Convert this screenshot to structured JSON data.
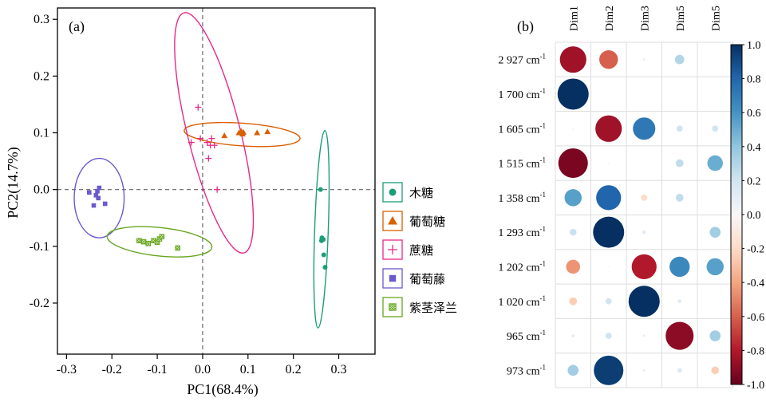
{
  "chart_data": [
    {
      "type": "scatter",
      "panel_label": "(a)",
      "xlabel": "PC1(68.4%)",
      "ylabel": "PC2(14.7%)",
      "xlim": [
        -0.32,
        0.38
      ],
      "ylim": [
        -0.29,
        0.32
      ],
      "xticks": [
        -0.3,
        -0.2,
        -0.1,
        0.0,
        0.1,
        0.2,
        0.3
      ],
      "yticks": [
        -0.2,
        -0.1,
        0.0,
        0.1,
        0.2,
        0.3
      ],
      "xtick_labels": [
        "-0.3",
        "-0.2",
        "-0.1",
        "0.0",
        "0.1",
        "0.2",
        "0.3"
      ],
      "ytick_labels": [
        "-0.2",
        "-0.1",
        "0.0",
        "0.1",
        "0.2",
        "0.3"
      ],
      "reference_lines": {
        "x": 0,
        "y": 0
      },
      "legend_position": "right",
      "series": [
        {
          "name": "木糖",
          "color": "#1b9e77",
          "marker": "circle",
          "points": [
            [
              0.26,
              0.0
            ],
            [
              0.263,
              -0.085
            ],
            [
              0.266,
              -0.088
            ],
            [
              0.262,
              -0.09
            ],
            [
              0.267,
              -0.115
            ],
            [
              0.27,
              -0.137
            ]
          ],
          "ellipse": {
            "cx": 0.262,
            "cy": -0.07,
            "rx": 0.015,
            "ry": 0.174,
            "angle": 2
          }
        },
        {
          "name": "葡萄糖",
          "color": "#d95f02",
          "marker": "triangle",
          "points": [
            [
              0.048,
              0.095
            ],
            [
              0.08,
              0.1
            ],
            [
              0.085,
              0.103
            ],
            [
              0.088,
              0.098
            ],
            [
              0.09,
              0.101
            ],
            [
              0.12,
              0.1
            ],
            [
              0.143,
              0.102
            ]
          ],
          "ellipse": {
            "cx": 0.087,
            "cy": 0.097,
            "rx": 0.128,
            "ry": 0.02,
            "angle": 4
          }
        },
        {
          "name": "蔗糖",
          "color": "#e7298a",
          "marker": "plus",
          "points": [
            [
              -0.01,
              0.145
            ],
            [
              -0.005,
              0.09
            ],
            [
              -0.025,
              0.083
            ],
            [
              0.02,
              0.09
            ],
            [
              0.01,
              0.083
            ],
            [
              0.017,
              0.078
            ],
            [
              0.026,
              0.078
            ],
            [
              0.013,
              0.055
            ],
            [
              0.032,
              0.0
            ]
          ],
          "ellipse": {
            "cx": 0.025,
            "cy": 0.1,
            "rx": 0.058,
            "ry": 0.218,
            "angle": -14
          }
        },
        {
          "name": "葡萄藤",
          "color": "#6a5acd",
          "marker": "square",
          "points": [
            [
              -0.25,
              -0.005
            ],
            [
              -0.235,
              -0.01
            ],
            [
              -0.23,
              -0.015
            ],
            [
              -0.232,
              -0.003
            ],
            [
              -0.215,
              -0.025
            ],
            [
              -0.24,
              -0.028
            ],
            [
              -0.228,
              0.003
            ]
          ],
          "ellipse": {
            "cx": -0.228,
            "cy": -0.015,
            "rx": 0.055,
            "ry": 0.07,
            "angle": 0
          }
        },
        {
          "name": "紫茎泽兰",
          "color": "#66a61e",
          "marker": "square-hatched",
          "points": [
            [
              -0.14,
              -0.09
            ],
            [
              -0.13,
              -0.092
            ],
            [
              -0.12,
              -0.095
            ],
            [
              -0.108,
              -0.09
            ],
            [
              -0.1,
              -0.093
            ],
            [
              -0.095,
              -0.087
            ],
            [
              -0.09,
              -0.083
            ],
            [
              -0.055,
              -0.103
            ]
          ],
          "ellipse": {
            "cx": -0.095,
            "cy": -0.092,
            "rx": 0.116,
            "ry": 0.025,
            "angle": 6
          }
        }
      ]
    },
    {
      "type": "heatmap",
      "panel_label": "(b)",
      "columns": [
        "Dim1",
        "Dim2",
        "Dim3",
        "Dim5",
        "Dim5"
      ],
      "rows": [
        "2 927 cm",
        "1 700 cm",
        "1 605 cm",
        "1 515 cm",
        "1 358 cm",
        "1 293 cm",
        "1 202 cm",
        "1 020 cm",
        "965 cm",
        "973 cm"
      ],
      "row_unit_superscript": "-1",
      "values": [
        [
          -0.85,
          -0.6,
          -0.08,
          0.3,
          0.0
        ],
        [
          1.0,
          -0.03,
          0.0,
          0.0,
          0.0
        ],
        [
          -0.05,
          -0.85,
          0.72,
          0.2,
          0.2
        ],
        [
          -0.95,
          -0.05,
          -0.03,
          0.25,
          0.5
        ],
        [
          0.55,
          0.8,
          -0.2,
          0.25,
          0.0
        ],
        [
          0.22,
          1.0,
          0.12,
          0.0,
          0.35
        ],
        [
          -0.45,
          -0.04,
          -0.8,
          0.65,
          0.55
        ],
        [
          -0.25,
          0.2,
          1.0,
          0.12,
          0.0
        ],
        [
          0.1,
          0.2,
          0.08,
          -0.9,
          0.35
        ],
        [
          0.35,
          0.95,
          0.08,
          0.15,
          -0.25
        ]
      ],
      "colorbar": {
        "min": -1.0,
        "max": 1.0,
        "ticks": [
          1.0,
          0.8,
          0.6,
          0.4,
          0.2,
          0.0,
          -0.2,
          -0.4,
          -0.6,
          -0.8,
          -1.0
        ],
        "tick_labels": [
          "1.0",
          "0.8",
          "0.6",
          "0.4",
          "0.2",
          "0.0",
          "-0.2",
          "-0.4",
          "-0.6",
          "-0.8",
          "-1.0"
        ]
      }
    }
  ]
}
